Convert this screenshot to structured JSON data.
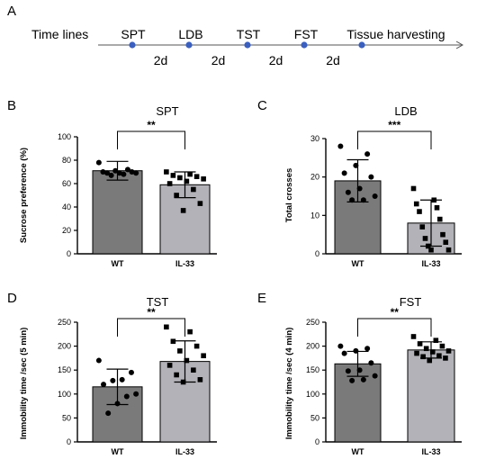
{
  "timeline": {
    "letter": "A",
    "label": "Time lines",
    "steps": [
      "SPT",
      "LDB",
      "TST",
      "FST",
      "Tissue harvesting"
    ],
    "intervals": [
      "2d",
      "2d",
      "2d",
      "2d"
    ],
    "dot_color": "#3a5fbf"
  },
  "colors": {
    "wt_bar": "#7a7a7a",
    "il33_bar": "#b2b2b8",
    "points": "#000000"
  },
  "chart_data": [
    {
      "letter": "B",
      "type": "bar",
      "title": "SPT",
      "ylabel": "Sucrose preference (%)",
      "categories": [
        "WT",
        "IL-33"
      ],
      "ylim": [
        0,
        100
      ],
      "yticks": [
        0,
        20,
        40,
        60,
        80,
        100
      ],
      "means": [
        71,
        59
      ],
      "sd": [
        8,
        11
      ],
      "points": [
        [
          78,
          72,
          71,
          70,
          70,
          69,
          69,
          69,
          68,
          67
        ],
        [
          70,
          68,
          67,
          66,
          65,
          64,
          62,
          60,
          55,
          50,
          43,
          37
        ]
      ],
      "significance": "**"
    },
    {
      "letter": "C",
      "type": "bar",
      "title": "LDB",
      "ylabel": "Total crosses",
      "categories": [
        "WT",
        "IL-33"
      ],
      "ylim": [
        0,
        30
      ],
      "yticks": [
        0,
        10,
        20,
        30
      ],
      "means": [
        19,
        8
      ],
      "sd": [
        5.5,
        6
      ],
      "points": [
        [
          28,
          26,
          23,
          21,
          20,
          17,
          16,
          15,
          14,
          14
        ],
        [
          17,
          14,
          13,
          12,
          11,
          9,
          7,
          5,
          4,
          3,
          2,
          1,
          1
        ]
      ],
      "significance": "***"
    },
    {
      "letter": "D",
      "type": "bar",
      "title": "TST",
      "ylabel": "Immobility time /sec (5 min)",
      "categories": [
        "WT",
        "IL-33"
      ],
      "ylim": [
        0,
        250
      ],
      "yticks": [
        0,
        50,
        100,
        150,
        200,
        250
      ],
      "means": [
        115,
        168
      ],
      "sd": [
        37,
        43
      ],
      "points": [
        [
          170,
          145,
          130,
          128,
          120,
          100,
          95,
          80,
          60
        ],
        [
          240,
          230,
          210,
          200,
          190,
          180,
          170,
          160,
          150,
          140,
          130,
          125
        ]
      ],
      "significance": "**"
    },
    {
      "letter": "E",
      "type": "bar",
      "title": "FST",
      "ylabel": "Immobility time /sec (4 min)",
      "categories": [
        "WT",
        "IL-33"
      ],
      "ylim": [
        0,
        250
      ],
      "yticks": [
        0,
        50,
        100,
        150,
        200,
        250
      ],
      "means": [
        163,
        192
      ],
      "sd": [
        26,
        17
      ],
      "points": [
        [
          200,
          195,
          190,
          185,
          165,
          150,
          148,
          138,
          130,
          128
        ],
        [
          220,
          212,
          205,
          200,
          195,
          190,
          188,
          185,
          180,
          178,
          175,
          170
        ]
      ],
      "significance": "**"
    }
  ]
}
